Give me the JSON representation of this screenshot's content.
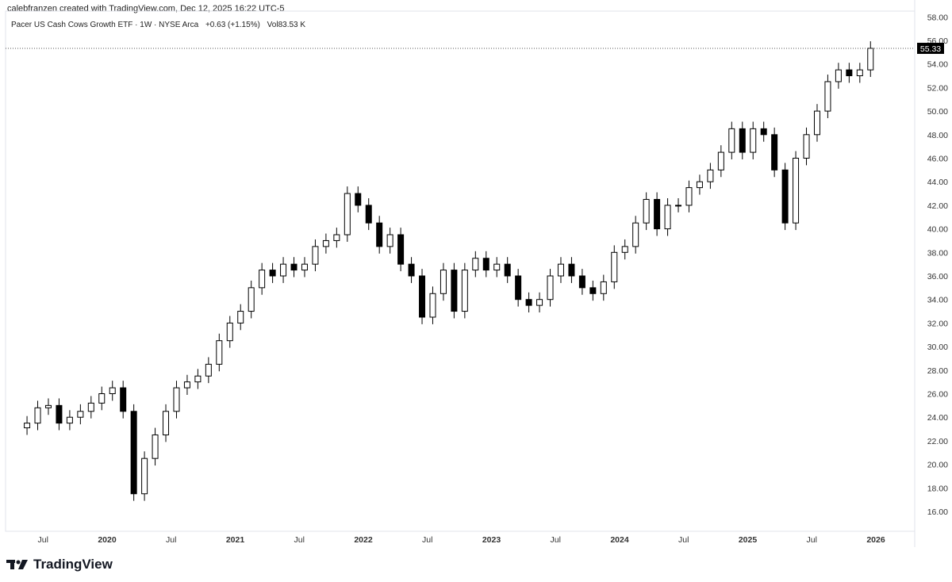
{
  "header": {
    "credit": "calebfranzen created with TradingView.com, Dec 12, 2025 16:22 UTC-5",
    "symbol_title": "Pacer US Cash Cows Growth ETF · 1W · NYSE Arca",
    "change": "+0.63 (+1.15%)",
    "volume": "Vol83.53 K"
  },
  "footer": {
    "brand": "TradingView"
  },
  "colors": {
    "up": "#ffffff",
    "down": "#000000",
    "wick": "#000000",
    "price_label_bg": "#000000"
  },
  "chart_data": {
    "type": "candlestick",
    "title": "Pacer US Cash Cows Growth ETF · 1W · NYSE Arca",
    "ylim": [
      15,
      59
    ],
    "y_ticks": [
      "16.00",
      "18.00",
      "20.00",
      "22.00",
      "24.00",
      "26.00",
      "28.00",
      "30.00",
      "32.00",
      "34.00",
      "36.00",
      "38.00",
      "40.00",
      "42.00",
      "44.00",
      "46.00",
      "48.00",
      "50.00",
      "52.00",
      "54.00",
      "56.00",
      "58.00"
    ],
    "x_ticks": [
      {
        "label": "Jul",
        "t": 2019.5,
        "bold": false
      },
      {
        "label": "2020",
        "t": 2020.0,
        "bold": true
      },
      {
        "label": "Jul",
        "t": 2020.5,
        "bold": false
      },
      {
        "label": "2021",
        "t": 2021.0,
        "bold": true
      },
      {
        "label": "Jul",
        "t": 2021.5,
        "bold": false
      },
      {
        "label": "2022",
        "t": 2022.0,
        "bold": true
      },
      {
        "label": "Jul",
        "t": 2022.5,
        "bold": false
      },
      {
        "label": "2023",
        "t": 2023.0,
        "bold": true
      },
      {
        "label": "Jul",
        "t": 2023.5,
        "bold": false
      },
      {
        "label": "2024",
        "t": 2024.0,
        "bold": true
      },
      {
        "label": "Jul",
        "t": 2024.5,
        "bold": false
      },
      {
        "label": "2025",
        "t": 2025.0,
        "bold": true
      },
      {
        "label": "Jul",
        "t": 2025.5,
        "bold": false
      },
      {
        "label": "2026",
        "t": 2026.0,
        "bold": true
      }
    ],
    "last_price": "55.33",
    "start": "2019-05",
    "closes": [
      23.5,
      24.8,
      25.0,
      23.5,
      24.0,
      24.5,
      25.2,
      26.0,
      26.5,
      24.5,
      17.5,
      20.5,
      22.5,
      24.5,
      26.5,
      27.0,
      27.5,
      28.5,
      30.5,
      32.0,
      33.0,
      35.0,
      36.5,
      36.0,
      37.0,
      36.5,
      37.0,
      38.5,
      39.0,
      39.5,
      43.0,
      42.0,
      40.5,
      38.5,
      39.5,
      37.0,
      36.0,
      32.5,
      34.5,
      36.5,
      33.0,
      36.5,
      37.5,
      36.5,
      37.0,
      36.0,
      34.0,
      33.5,
      34.0,
      36.0,
      37.0,
      36.0,
      35.0,
      34.5,
      35.5,
      38.0,
      38.5,
      40.5,
      42.5,
      40.0,
      42.0,
      42.0,
      43.5,
      44.0,
      45.0,
      46.5,
      48.5,
      46.5,
      48.5,
      48.0,
      45.0,
      40.5,
      46.0,
      48.0,
      50.0,
      52.5,
      53.5,
      53.0,
      53.5,
      55.33
    ]
  }
}
